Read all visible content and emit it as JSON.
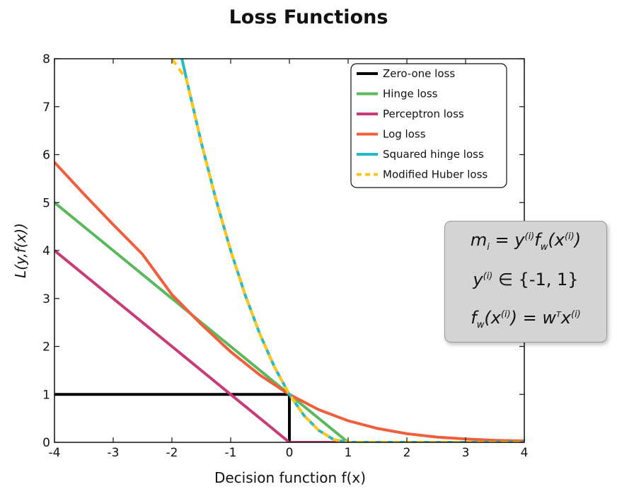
{
  "chart_data": {
    "type": "line",
    "title": "Loss Functions",
    "xlabel": "Decision function f(x)",
    "ylabel": "L(y,f(x))",
    "xlim": [
      -4,
      4
    ],
    "ylim": [
      0,
      8
    ],
    "x_ticks": [
      "-4",
      "-3",
      "-2",
      "-1",
      "0",
      "1",
      "2",
      "3",
      "4"
    ],
    "y_ticks": [
      "0",
      "1",
      "2",
      "3",
      "4",
      "5",
      "6",
      "7",
      "8"
    ],
    "grid": false,
    "legend_position": "top-right",
    "series": [
      {
        "name": "Zero-one loss",
        "color": "#000000",
        "style": "solid",
        "points": [
          [
            -4,
            1
          ],
          [
            0,
            1
          ],
          [
            0,
            0
          ],
          [
            4,
            0
          ]
        ]
      },
      {
        "name": "Hinge loss",
        "color": "#5cb85c",
        "style": "solid",
        "points": [
          [
            -4,
            5
          ],
          [
            -3,
            4
          ],
          [
            -2,
            3
          ],
          [
            -1,
            2
          ],
          [
            0,
            1
          ],
          [
            1,
            0
          ],
          [
            2,
            0
          ],
          [
            3,
            0
          ],
          [
            4,
            0
          ]
        ]
      },
      {
        "name": "Perceptron loss",
        "color": "#c93a78",
        "style": "solid",
        "points": [
          [
            -4,
            4
          ],
          [
            -3,
            3
          ],
          [
            -2,
            2
          ],
          [
            -1,
            1
          ],
          [
            0,
            0
          ],
          [
            1,
            0
          ],
          [
            2,
            0
          ],
          [
            3,
            0
          ],
          [
            4,
            0
          ]
        ]
      },
      {
        "name": "Log loss",
        "color": "#ef5f3c",
        "style": "solid",
        "points": [
          [
            -4,
            5.84
          ],
          [
            -3.5,
            5.18
          ],
          [
            -3,
            4.54
          ],
          [
            -2.5,
            3.92
          ],
          [
            -2,
            3.08
          ],
          [
            -1.5,
            2.46
          ],
          [
            -1,
            1.89
          ],
          [
            -0.5,
            1.4
          ],
          [
            0,
            1.0
          ],
          [
            0.5,
            0.68
          ],
          [
            1,
            0.45
          ],
          [
            1.5,
            0.29
          ],
          [
            2,
            0.18
          ],
          [
            2.5,
            0.11
          ],
          [
            3,
            0.07
          ],
          [
            3.5,
            0.04
          ],
          [
            4,
            0.03
          ]
        ]
      },
      {
        "name": "Squared hinge loss",
        "color": "#28b9c8",
        "style": "solid",
        "points": [
          [
            -1.83,
            8
          ],
          [
            -1.75,
            7.56
          ],
          [
            -1.5,
            6.25
          ],
          [
            -1.25,
            5.06
          ],
          [
            -1,
            4
          ],
          [
            -0.75,
            3.06
          ],
          [
            -0.5,
            2.25
          ],
          [
            -0.25,
            1.56
          ],
          [
            0,
            1
          ],
          [
            0.25,
            0.56
          ],
          [
            0.5,
            0.25
          ],
          [
            0.75,
            0.06
          ],
          [
            1,
            0
          ],
          [
            2,
            0
          ],
          [
            3,
            0
          ],
          [
            4,
            0
          ]
        ]
      },
      {
        "name": "Modified Huber loss",
        "color": "#ffc61a",
        "style": "dashed",
        "points": [
          [
            -2,
            8
          ],
          [
            -1.75,
            7.56
          ],
          [
            -1.5,
            6.25
          ],
          [
            -1.25,
            5.06
          ],
          [
            -1,
            4
          ],
          [
            -0.75,
            3.06
          ],
          [
            -0.5,
            2.25
          ],
          [
            -0.25,
            1.56
          ],
          [
            0,
            1
          ],
          [
            0.25,
            0.56
          ],
          [
            0.5,
            0.25
          ],
          [
            0.75,
            0.06
          ],
          [
            1,
            0
          ],
          [
            2,
            0
          ],
          [
            3,
            0
          ],
          [
            4,
            0
          ]
        ]
      }
    ]
  },
  "formula_box": {
    "m_base": "m",
    "m_sub": "i",
    "eq": " = ",
    "y": "y",
    "sup_i": "(i)",
    "f": "f",
    "f_sub": "w",
    "x": "x",
    "open": "(",
    "close": ")",
    "member": "  ∈ {-1, 1}",
    "w": "w",
    "sup_T": "T"
  }
}
